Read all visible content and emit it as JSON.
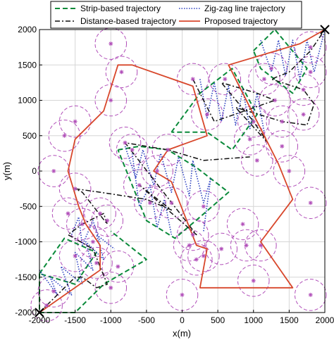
{
  "chart_data": {
    "type": "scatter",
    "xlabel": "x(m)",
    "ylabel": "y(m)",
    "xlim": [
      -2000,
      2000
    ],
    "ylim": [
      -2000,
      2000
    ],
    "xticks": [
      "-2000",
      "-1500",
      "-1000",
      "-500",
      "0",
      "500",
      "1000",
      "1500",
      "2000"
    ],
    "yticks": [
      "-2000",
      "-1500",
      "-1000",
      "-500",
      "0",
      "500",
      "1000",
      "1500",
      "2000"
    ],
    "grid": true,
    "legend_placement": "top",
    "coverage_radius": 220,
    "colors": {
      "strip": "#0a8a3a",
      "zigzag": "#2a3fbf",
      "distance": "#111111",
      "proposed": "#d8472b",
      "circle": "#b04db8",
      "node": "#b04db8",
      "grid": "#d6d6d6"
    },
    "legend": [
      {
        "key": "strip",
        "label": "Strip-based trajectory"
      },
      {
        "key": "zigzag",
        "label": "Zig-zag line trajectory"
      },
      {
        "key": "distance",
        "label": "Distance-based trajectory"
      },
      {
        "key": "proposed",
        "label": "Proposed trajectory"
      }
    ],
    "start_end_markers": [
      [
        -2000,
        -2000
      ],
      [
        2000,
        2000
      ]
    ],
    "nodes": [
      [
        -1000,
        1800
      ],
      [
        -850,
        1400
      ],
      [
        -1000,
        1000
      ],
      [
        -1500,
        700
      ],
      [
        -1650,
        500
      ],
      [
        -1800,
        0
      ],
      [
        -1500,
        -250
      ],
      [
        -1600,
        -600
      ],
      [
        -1400,
        -750
      ],
      [
        -1150,
        -600
      ],
      [
        -1050,
        -700
      ],
      [
        -1250,
        -1000
      ],
      [
        -1500,
        -1200
      ],
      [
        -1200,
        -1300
      ],
      [
        -900,
        -1350
      ],
      [
        -1000,
        -1650
      ],
      [
        -1800,
        -1700
      ],
      [
        -1900,
        -1900
      ],
      [
        -800,
        400
      ],
      [
        -700,
        300
      ],
      [
        -200,
        300
      ],
      [
        -350,
        0
      ],
      [
        -600,
        -200
      ],
      [
        -450,
        -450
      ],
      [
        -150,
        -450
      ],
      [
        300,
        -500
      ],
      [
        150,
        -900
      ],
      [
        100,
        -1050
      ],
      [
        300,
        -1200
      ],
      [
        200,
        -1250
      ],
      [
        550,
        -1100
      ],
      [
        900,
        -1050
      ],
      [
        850,
        -750
      ],
      [
        1100,
        -1050
      ],
      [
        1000,
        -1550
      ],
      [
        0,
        -1750
      ],
      [
        1800,
        -1750
      ],
      [
        1800,
        -450
      ],
      [
        1500,
        0
      ],
      [
        1400,
        350
      ],
      [
        1400,
        700
      ],
      [
        1700,
        800
      ],
      [
        1300,
        1000
      ],
      [
        1150,
        1300
      ],
      [
        1250,
        1450
      ],
      [
        1700,
        1150
      ],
      [
        1800,
        1400
      ],
      [
        1800,
        1750
      ],
      [
        600,
        1300
      ],
      [
        150,
        1300
      ],
      [
        350,
        800
      ],
      [
        1000,
        700
      ],
      [
        1050,
        150
      ],
      [
        950,
        450
      ]
    ],
    "series": [
      {
        "key": "strip",
        "polylines": [
          [
            [
              -2000,
              -1450
            ],
            [
              -1650,
              -950
            ],
            [
              -1200,
              -1150
            ],
            [
              -1500,
              -1600
            ],
            [
              -2000,
              -1450
            ]
          ],
          [
            [
              -2000,
              -1450
            ],
            [
              -2000,
              -2000
            ],
            [
              -1500,
              -2000
            ],
            [
              -1100,
              -1600
            ],
            [
              -500,
              -1250
            ],
            [
              -1000,
              -850
            ]
          ],
          [
            [
              -900,
              300
            ],
            [
              -600,
              350
            ],
            [
              -200,
              300
            ],
            [
              200,
              50
            ],
            [
              650,
              -300
            ],
            [
              250,
              -650
            ],
            [
              -100,
              -950
            ],
            [
              -500,
              -700
            ],
            [
              -900,
              300
            ]
          ],
          [
            [
              -150,
              550
            ],
            [
              250,
              1100
            ],
            [
              700,
              1450
            ],
            [
              1050,
              800
            ],
            [
              700,
              300
            ],
            [
              350,
              550
            ],
            [
              -150,
              550
            ]
          ],
          [
            [
              1000,
              1700
            ],
            [
              1300,
              2000
            ],
            [
              1750,
              1450
            ],
            [
              1550,
              1100
            ],
            [
              1100,
              1450
            ],
            [
              1000,
              1700
            ]
          ]
        ]
      },
      {
        "key": "zigzag",
        "polylines": [
          [
            [
              -2000,
              -1400
            ],
            [
              -1750,
              -1750
            ],
            [
              -1850,
              -1500
            ],
            [
              -1550,
              -1750
            ],
            [
              -1700,
              -1350
            ],
            [
              -1400,
              -1600
            ],
            [
              -1500,
              -1150
            ],
            [
              -1250,
              -1400
            ],
            [
              -1350,
              -1000
            ],
            [
              -1100,
              -1250
            ],
            [
              -1200,
              -900
            ],
            [
              -950,
              -1100
            ]
          ],
          [
            [
              -1550,
              -900
            ],
            [
              -1450,
              -650
            ],
            [
              -1400,
              -1050
            ],
            [
              -1250,
              -700
            ],
            [
              -1150,
              -1000
            ]
          ],
          [
            [
              -800,
              350
            ],
            [
              -650,
              -100
            ],
            [
              -550,
              300
            ],
            [
              -400,
              -200
            ],
            [
              -300,
              250
            ],
            [
              -150,
              -300
            ],
            [
              -50,
              200
            ],
            [
              100,
              -350
            ],
            [
              150,
              150
            ],
            [
              300,
              -450
            ],
            [
              400,
              -100
            ],
            [
              300,
              -850
            ]
          ],
          [
            [
              -700,
              250
            ],
            [
              -600,
              -500
            ],
            [
              -450,
              -200
            ],
            [
              -350,
              -800
            ],
            [
              -250,
              -400
            ],
            [
              -150,
              -900
            ]
          ],
          [
            [
              250,
              1300
            ],
            [
              350,
              750
            ],
            [
              450,
              1250
            ],
            [
              550,
              700
            ],
            [
              650,
              1200
            ],
            [
              750,
              650
            ],
            [
              850,
              1150
            ],
            [
              950,
              600
            ],
            [
              1050,
              1100
            ],
            [
              1150,
              550
            ]
          ],
          [
            [
              1100,
              1850
            ],
            [
              1250,
              1400
            ],
            [
              1350,
              1850
            ],
            [
              1450,
              1350
            ],
            [
              1550,
              1850
            ],
            [
              1650,
              1300
            ],
            [
              1750,
              1850
            ],
            [
              1850,
              1400
            ],
            [
              2000,
              2000
            ]
          ]
        ]
      },
      {
        "key": "distance",
        "polylines": [
          [
            [
              -2000,
              -2000
            ],
            [
              -1500,
              -1500
            ],
            [
              -1400,
              -1500
            ],
            [
              -1200,
              -1650
            ],
            [
              -1050,
              -1600
            ],
            [
              -1250,
              -1100
            ],
            [
              -1600,
              -900
            ],
            [
              -1400,
              -750
            ],
            [
              -1100,
              -600
            ],
            [
              -1050,
              -750
            ],
            [
              -1400,
              -300
            ],
            [
              -1500,
              -250
            ]
          ],
          [
            [
              -1500,
              -250
            ],
            [
              -1150,
              -300
            ],
            [
              -500,
              -400
            ],
            [
              -150,
              -550
            ],
            [
              -600,
              -200
            ],
            [
              200,
              -900
            ],
            [
              -800,
              400
            ],
            [
              -200,
              300
            ],
            [
              300,
              150
            ],
            [
              950,
              200
            ]
          ],
          [
            [
              150,
              1300
            ],
            [
              450,
              700
            ],
            [
              1300,
              1000
            ],
            [
              1050,
              1100
            ],
            [
              550,
              1250
            ],
            [
              1000,
              700
            ],
            [
              1200,
              400
            ],
            [
              750,
              900
            ],
            [
              1400,
              700
            ],
            [
              1750,
              650
            ],
            [
              1850,
              950
            ]
          ],
          [
            [
              1850,
              950
            ],
            [
              1700,
              1150
            ],
            [
              1250,
              1300
            ],
            [
              1500,
              1400
            ],
            [
              1800,
              1700
            ],
            [
              2000,
              2000
            ]
          ]
        ]
      },
      {
        "key": "proposed",
        "polylines": [
          [
            [
              -2000,
              -2000
            ],
            [
              -1150,
              -1400
            ],
            [
              -1150,
              -1050
            ],
            [
              -1350,
              -750
            ],
            [
              -1450,
              -500
            ],
            [
              -1600,
              0
            ],
            [
              -1500,
              450
            ],
            [
              -1100,
              850
            ],
            [
              -900,
              1500
            ],
            [
              -700,
              1500
            ],
            [
              150,
              1200
            ],
            [
              350,
              500
            ],
            [
              -200,
              300
            ],
            [
              -400,
              0
            ],
            [
              -150,
              -150
            ],
            [
              200,
              -1050
            ],
            [
              350,
              -1100
            ],
            [
              250,
              -1650
            ],
            [
              1550,
              -1650
            ],
            [
              1100,
              -1000
            ],
            [
              1550,
              -400
            ],
            [
              1350,
              100
            ],
            [
              650,
              1500
            ],
            [
              1650,
              1800
            ],
            [
              2000,
              2000
            ]
          ]
        ]
      }
    ]
  }
}
